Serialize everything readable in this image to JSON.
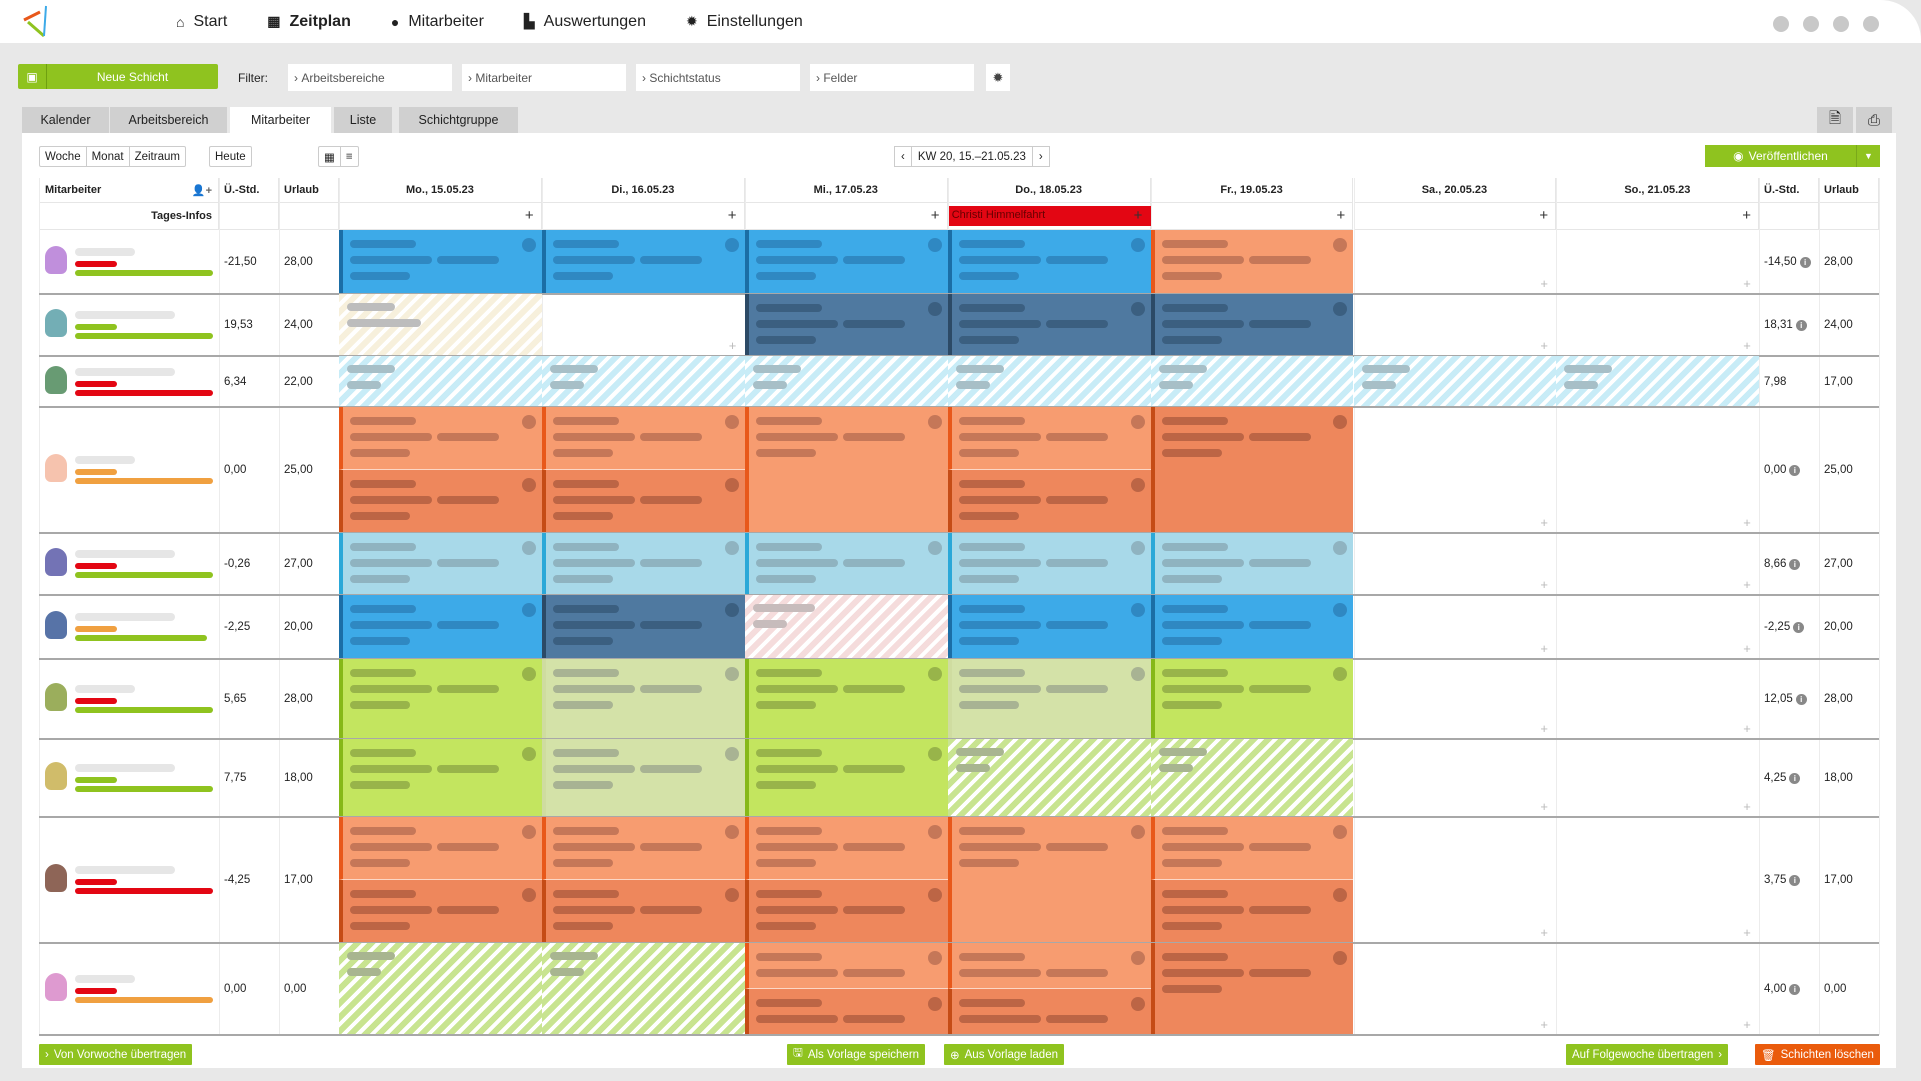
{
  "nav": {
    "items": [
      {
        "label": "Start",
        "icon": "home-icon",
        "glyph": "⌂"
      },
      {
        "label": "Zeitplan",
        "icon": "calendar-icon",
        "glyph": "▦",
        "active": true
      },
      {
        "label": "Mitarbeiter",
        "icon": "user-icon",
        "glyph": "●"
      },
      {
        "label": "Auswertungen",
        "icon": "chart-icon",
        "glyph": "▙"
      },
      {
        "label": "Einstellungen",
        "icon": "gear-icon",
        "glyph": "✹"
      }
    ]
  },
  "toolbar": {
    "new_shift": "Neue Schicht",
    "filter_label": "Filter:",
    "filters": [
      "Arbeitsbereiche",
      "Mitarbeiter",
      "Schichtstatus",
      "Felder"
    ]
  },
  "tabs": [
    {
      "label": "Kalender"
    },
    {
      "label": "Arbeitsbereich"
    },
    {
      "label": "Mitarbeiter",
      "active": true
    },
    {
      "label": "Liste"
    },
    {
      "label": "Schichtgruppe"
    }
  ],
  "view": {
    "modes": [
      "Woche",
      "Monat",
      "Zeitraum"
    ],
    "today": "Heute",
    "week": "KW 20, 15.–21.05.23",
    "publish": "Veröffentlichen"
  },
  "table": {
    "headers": {
      "employee": "Mitarbeiter",
      "overtime": "Ü.-Std.",
      "vacation": "Urlaub",
      "day_info": "Tages-Infos"
    },
    "days": [
      "Mo., 15.05.23",
      "Di., 16.05.23",
      "Mi., 17.05.23",
      "Do., 18.05.23",
      "Fr., 19.05.23",
      "Sa., 20.05.23",
      "So., 21.05.23"
    ],
    "holidays": {
      "3": "Christi Himmelfahrt"
    },
    "colors": {
      "holiday": "#e30613",
      "accent": "#8fc31f",
      "delete": "#ea5b0c"
    },
    "rows": [
      {
        "bars": [
          "#e30613",
          "#8fc31f"
        ],
        "avatar": "#b57bd6",
        "ustd": "-21,50",
        "urlaub": "28,00",
        "ustd_end": "-14,50",
        "urlaub_end": "28,00",
        "days": [
          [
            "blue"
          ],
          [
            "blue"
          ],
          [
            "blue"
          ],
          [
            "blue"
          ],
          [
            "orange"
          ],
          [],
          []
        ]
      },
      {
        "bars": [
          "#8fc31f",
          "#8fc31f"
        ],
        "avatar": "#5aa0a8",
        "ustd": "19,53",
        "urlaub": "24,00",
        "ustd_end": "18,31",
        "urlaub_end": "24,00",
        "days": [
          [
            "hatch-cream"
          ],
          [],
          [
            "darkblue"
          ],
          [
            "darkblue"
          ],
          [
            "darkblue"
          ],
          [],
          []
        ]
      },
      {
        "bars": [
          "#e30613",
          "#e30613"
        ],
        "avatar": "#4d8a5a",
        "ustd": "6,34",
        "urlaub": "22,00",
        "ustd_end": "7,98",
        "urlaub_end": "17,00",
        "days": [
          [
            "hatch-cyan"
          ],
          [
            "hatch-cyan"
          ],
          [
            "hatch-cyan"
          ],
          [
            "hatch-cyan"
          ],
          [
            "hatch-cyan"
          ],
          [
            "hatch-cyan"
          ],
          [
            "hatch-cyan"
          ]
        ]
      },
      {
        "bars": [
          "#f0a040",
          "#f0a040"
        ],
        "avatar": "#f4b8a0",
        "ustd": "0,00",
        "urlaub": "25,00",
        "ustd_end": "0,00",
        "urlaub_end": "25,00",
        "days": [
          [
            "orange",
            "orange-dark"
          ],
          [
            "orange",
            "orange-dark"
          ],
          [
            "orange"
          ],
          [
            "orange",
            "orange-dark"
          ],
          [
            "orange-dark"
          ],
          [],
          []
        ]
      },
      {
        "bars": [
          "#e30613",
          "#8fc31f"
        ],
        "avatar": "#5a5aa8",
        "ustd": "-0,26",
        "urlaub": "27,00",
        "ustd_end": "8,66",
        "urlaub_end": "27,00",
        "days": [
          [
            "lightblue"
          ],
          [
            "lightblue"
          ],
          [
            "lightblue"
          ],
          [
            "lightblue"
          ],
          [
            "lightblue"
          ],
          [],
          []
        ]
      },
      {
        "bars": [
          "#f0a040",
          "#8fc31f"
        ],
        "avatar": "#3a5a98",
        "ustd": "-2,25",
        "urlaub": "20,00",
        "ustd_end": "-2,25",
        "urlaub_end": "20,00",
        "days": [
          [
            "blue"
          ],
          [
            "darkblue"
          ],
          [
            "hatch-pink"
          ],
          [
            "blue"
          ],
          [
            "blue"
          ],
          [],
          []
        ]
      },
      {
        "bars": [
          "#e30613",
          "#8fc31f"
        ],
        "avatar": "#8aa040",
        "ustd": "5,65",
        "urlaub": "28,00",
        "ustd_end": "12,05",
        "urlaub_end": "28,00",
        "days": [
          [
            "green"
          ],
          [
            "green-pale"
          ],
          [
            "green"
          ],
          [
            "green-pale"
          ],
          [
            "green"
          ],
          [],
          []
        ]
      },
      {
        "bars": [
          "#8fc31f",
          "#8fc31f"
        ],
        "avatar": "#c8b050",
        "ustd": "7,75",
        "urlaub": "18,00",
        "ustd_end": "4,25",
        "urlaub_end": "18,00",
        "days": [
          [
            "green"
          ],
          [
            "green-pale"
          ],
          [
            "green"
          ],
          [
            "hatch-green"
          ],
          [
            "hatch-green"
          ],
          [],
          []
        ]
      },
      {
        "bars": [
          "#e30613",
          "#e30613"
        ],
        "avatar": "#7a4a3a",
        "ustd": "-4,25",
        "urlaub": "17,00",
        "ustd_end": "3,75",
        "urlaub_end": "17,00",
        "days": [
          [
            "orange",
            "orange-dark"
          ],
          [
            "orange",
            "orange-dark"
          ],
          [
            "orange",
            "orange-dark"
          ],
          [
            "orange"
          ],
          [
            "orange",
            "orange-dark"
          ],
          [],
          []
        ]
      },
      {
        "bars": [
          "#e30613",
          "#f0a040"
        ],
        "avatar": "#d888c8",
        "ustd": "0,00",
        "urlaub": "0,00",
        "ustd_end": "4,00",
        "urlaub_end": "0,00",
        "days": [
          [
            "hatch-green"
          ],
          [
            "hatch-green"
          ],
          [
            "orange",
            "orange-dark"
          ],
          [
            "orange",
            "orange-dark"
          ],
          [
            "orange-dark"
          ],
          [],
          []
        ]
      }
    ]
  },
  "footer": {
    "prev_week": "Von Vorwoche übertragen",
    "save_template": "Als Vorlage speichern",
    "load_template": "Aus Vorlage laden",
    "next_week": "Auf Folgewoche übertragen",
    "delete": "Schichten löschen"
  }
}
